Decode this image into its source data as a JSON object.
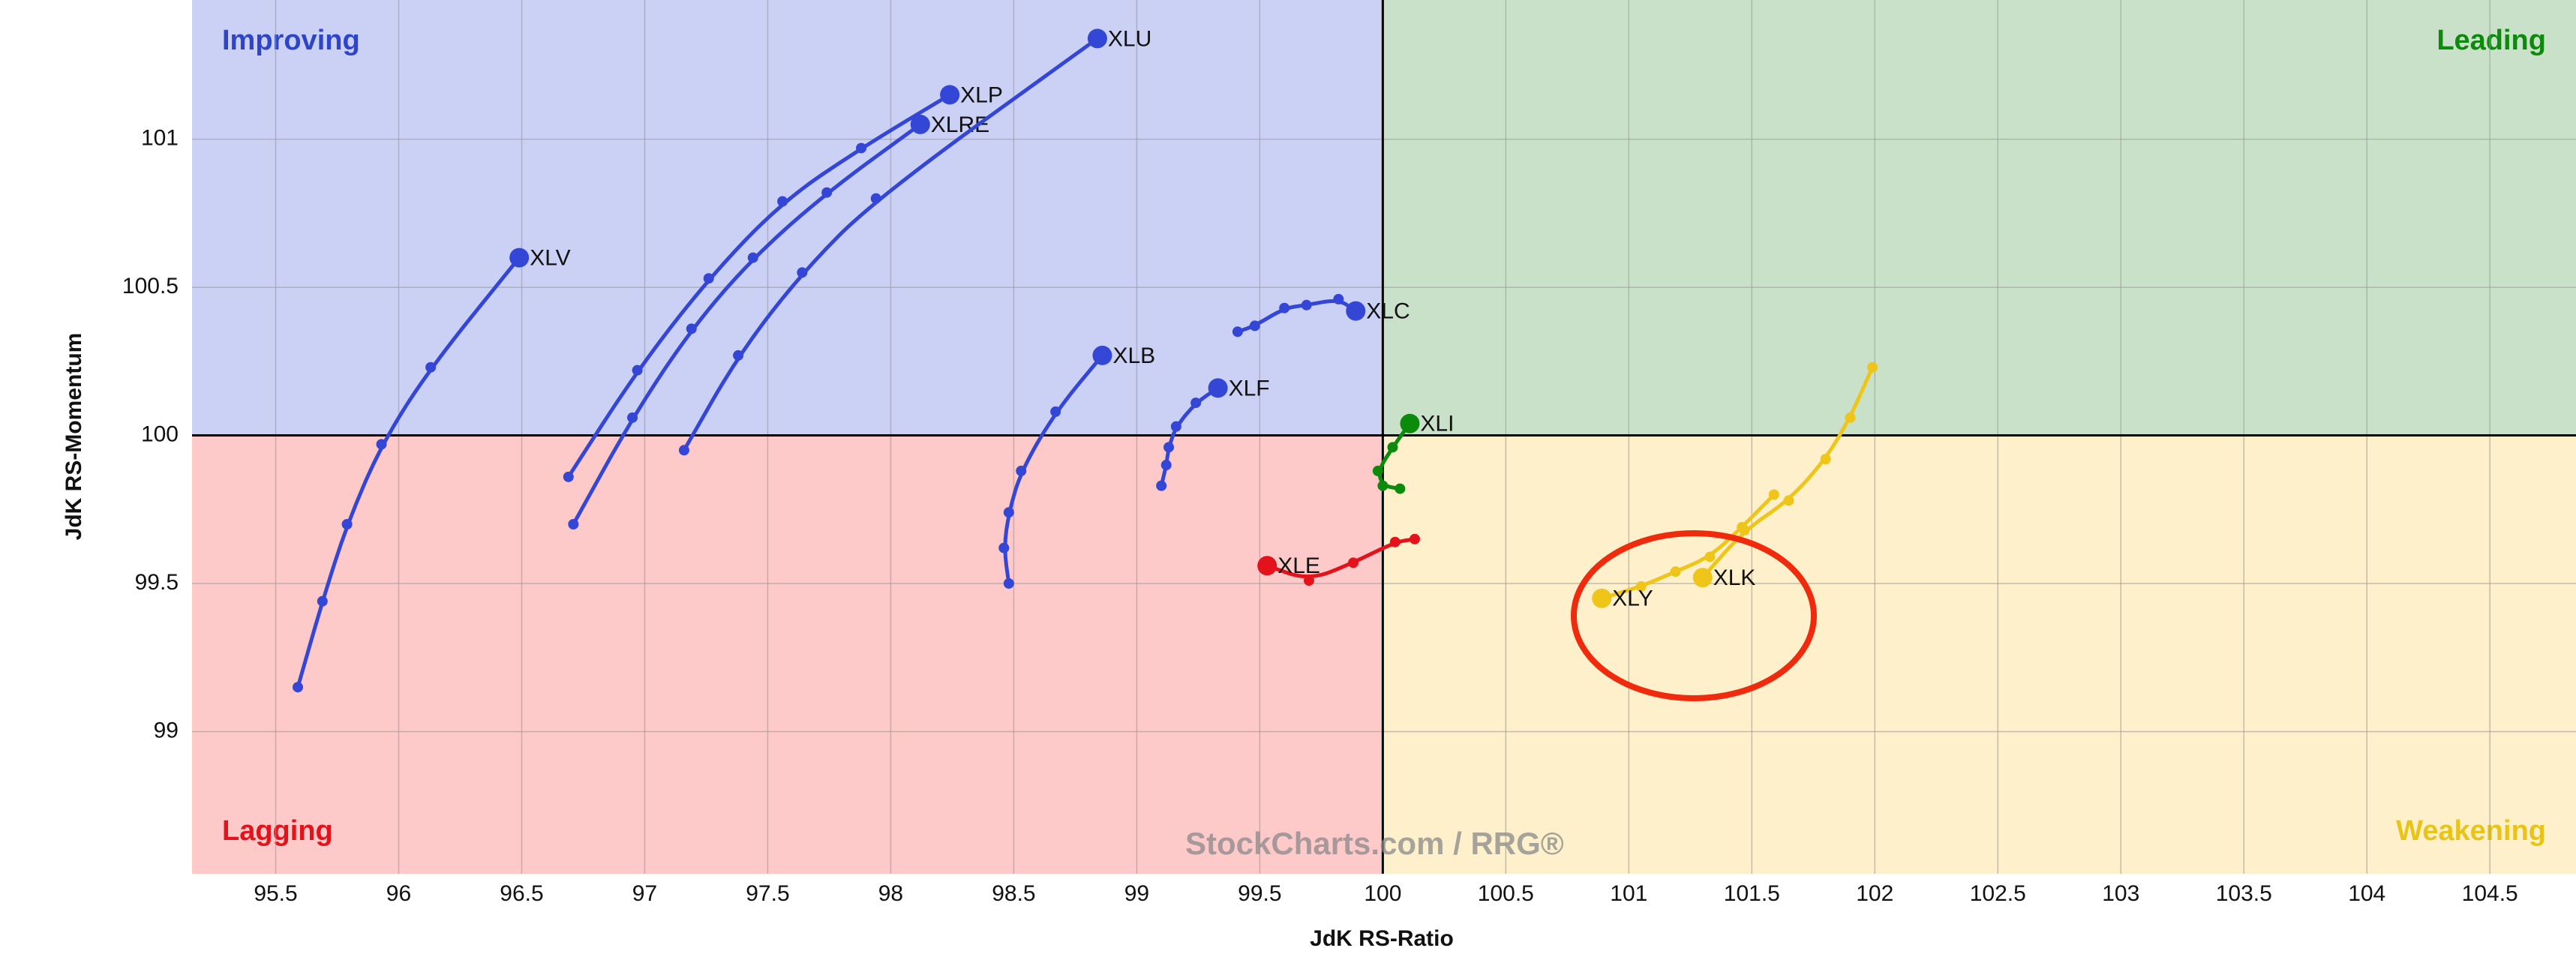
{
  "chart_data": {
    "type": "rrg",
    "x_label": "JdK RS-Ratio",
    "y_label": "JdK RS-Momentum",
    "xlim": [
      95.16,
      104.85
    ],
    "ylim": [
      98.52,
      101.47
    ],
    "xticks": [
      95.5,
      96,
      96.5,
      97,
      97.5,
      98,
      98.5,
      99,
      99.5,
      100,
      100.5,
      101,
      101.5,
      102,
      102.5,
      103,
      103.5,
      104,
      104.5
    ],
    "yticks": [
      99,
      99.5,
      100,
      100.5,
      101
    ],
    "grid": true,
    "center": [
      100,
      100
    ],
    "quadrants": [
      {
        "name": "Improving",
        "color": "#2e45c9",
        "fill": "#cbd0f5",
        "corner": "top-left"
      },
      {
        "name": "Leading",
        "color": "#0b8a0b",
        "fill": "#cae1c9",
        "corner": "top-right"
      },
      {
        "name": "Lagging",
        "color": "#e4121b",
        "fill": "#fec9c9",
        "corner": "bottom-left"
      },
      {
        "name": "Weakening",
        "color": "#e9c417",
        "fill": "#fdf0cb",
        "corner": "bottom-right"
      }
    ],
    "watermark": "StockCharts.com / RRG®",
    "series": [
      {
        "name": "XLV",
        "color": "#3346d6",
        "x": [
          95.59,
          95.69,
          95.79,
          95.93,
          96.13,
          96.49
        ],
        "y": [
          99.15,
          99.44,
          99.7,
          99.97,
          100.23,
          100.6
        ]
      },
      {
        "name": "XLP",
        "color": "#3346d6",
        "x": [
          96.69,
          96.97,
          97.26,
          97.56,
          97.88,
          98.24
        ],
        "y": [
          99.86,
          100.22,
          100.53,
          100.79,
          100.97,
          101.15
        ]
      },
      {
        "name": "XLRE",
        "color": "#3346d6",
        "x": [
          96.71,
          96.95,
          97.19,
          97.44,
          97.74,
          98.12
        ],
        "y": [
          99.7,
          100.06,
          100.36,
          100.6,
          100.82,
          101.05
        ]
      },
      {
        "name": "XLU",
        "color": "#3346d6",
        "x": [
          97.16,
          97.38,
          97.64,
          97.94,
          98.84
        ],
        "y": [
          99.95,
          100.27,
          100.55,
          100.8,
          101.34
        ]
      },
      {
        "name": "XLB",
        "color": "#3346d6",
        "x": [
          98.48,
          98.46,
          98.48,
          98.53,
          98.67,
          98.86
        ],
        "y": [
          99.5,
          99.62,
          99.74,
          99.88,
          100.08,
          100.27
        ]
      },
      {
        "name": "XLF",
        "color": "#3346d6",
        "x": [
          99.1,
          99.12,
          99.13,
          99.16,
          99.24,
          99.33
        ],
        "y": [
          99.83,
          99.9,
          99.96,
          100.03,
          100.11,
          100.16
        ]
      },
      {
        "name": "XLC",
        "color": "#3346d6",
        "x": [
          99.41,
          99.48,
          99.6,
          99.69,
          99.82,
          99.89
        ],
        "y": [
          100.35,
          100.37,
          100.43,
          100.44,
          100.46,
          100.42
        ]
      },
      {
        "name": "XLI",
        "color": "#0b8a0b",
        "x": [
          100.07,
          100.0,
          99.98,
          100.04,
          100.11
        ],
        "y": [
          99.82,
          99.83,
          99.88,
          99.96,
          100.04
        ]
      },
      {
        "name": "XLE",
        "color": "#e4121b",
        "x": [
          100.13,
          100.05,
          99.88,
          99.7,
          99.53
        ],
        "y": [
          99.65,
          99.64,
          99.57,
          99.51,
          99.56
        ]
      },
      {
        "name": "XLK",
        "color": "#eec518",
        "x": [
          101.99,
          101.9,
          101.8,
          101.65,
          101.47,
          101.3
        ],
        "y": [
          100.23,
          100.06,
          99.92,
          99.78,
          99.68,
          99.52
        ]
      },
      {
        "name": "XLY",
        "color": "#eec518",
        "x": [
          101.59,
          101.46,
          101.33,
          101.19,
          101.05,
          100.89
        ],
        "y": [
          99.8,
          99.69,
          99.59,
          99.54,
          99.49,
          99.45
        ]
      }
    ]
  }
}
